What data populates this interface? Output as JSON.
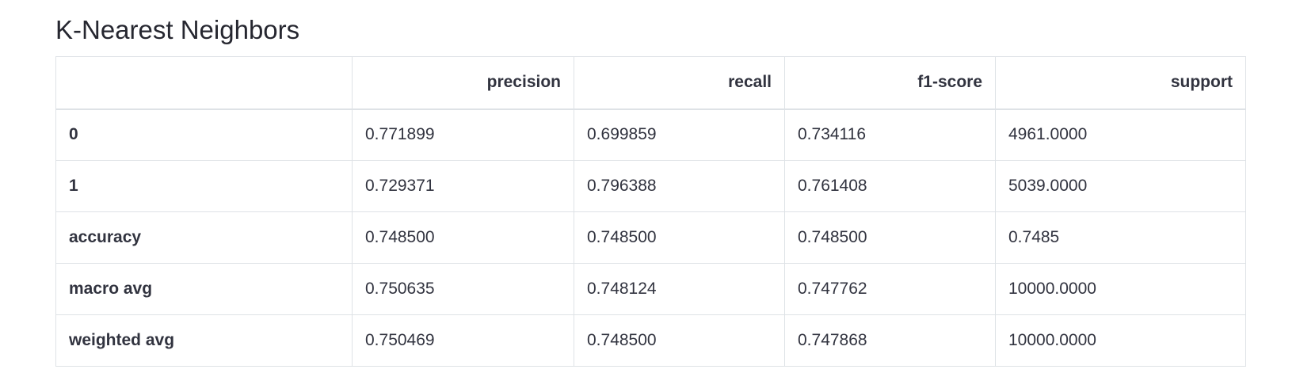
{
  "title": "K-Nearest Neighbors",
  "table": {
    "columns": [
      "",
      "precision",
      "recall",
      "f1-score",
      "support"
    ],
    "rows": [
      {
        "label": "0",
        "values": [
          "0.771899",
          "0.699859",
          "0.734116",
          "4961.0000"
        ]
      },
      {
        "label": "1",
        "values": [
          "0.729371",
          "0.796388",
          "0.761408",
          "5039.0000"
        ]
      },
      {
        "label": "accuracy",
        "values": [
          "0.748500",
          "0.748500",
          "0.748500",
          "0.7485"
        ]
      },
      {
        "label": "macro avg",
        "values": [
          "0.750635",
          "0.748124",
          "0.747762",
          "10000.0000"
        ]
      },
      {
        "label": "weighted avg",
        "values": [
          "0.750469",
          "0.748500",
          "0.747868",
          "10000.0000"
        ]
      }
    ]
  }
}
